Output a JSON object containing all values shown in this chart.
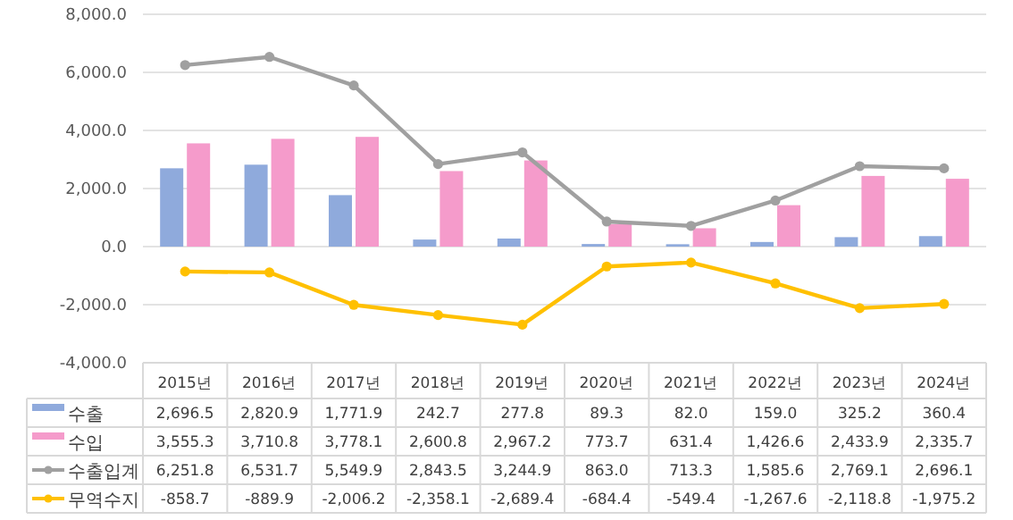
{
  "chart_data": {
    "type": "bar",
    "categories": [
      "2015년",
      "2016년",
      "2017년",
      "2018년",
      "2019년",
      "2020년",
      "2021년",
      "2022년",
      "2023년",
      "2024년"
    ],
    "series": [
      {
        "name": "수출",
        "color": "#8faadc",
        "values": [
          2696.5,
          2820.9,
          1771.9,
          242.7,
          277.8,
          89.3,
          82.0,
          159.0,
          325.2,
          360.4
        ],
        "value_labels": [
          "2,696.5",
          "2,820.9",
          "1,771.9",
          "242.7",
          "277.8",
          "89.3",
          "82.0",
          "159.0",
          "325.2",
          "360.4"
        ]
      },
      {
        "name": "수입",
        "color": "#f59bcb",
        "values": [
          3555.3,
          3710.8,
          3778.1,
          2600.8,
          2967.2,
          773.7,
          631.4,
          1426.6,
          2433.9,
          2335.7
        ],
        "value_labels": [
          "3,555.3",
          "3,710.8",
          "3,778.1",
          "2,600.8",
          "2,967.2",
          "773.7",
          "631.4",
          "1,426.6",
          "2,433.9",
          "2,335.7"
        ]
      },
      {
        "name": "수출입계",
        "type": "line",
        "marker": "circle",
        "color": "#a0a0a0",
        "values": [
          6251.8,
          6531.7,
          5549.9,
          2843.5,
          3244.9,
          863.0,
          713.3,
          1585.6,
          2769.1,
          2696.1
        ],
        "value_labels": [
          "6,251.8",
          "6,531.7",
          "5,549.9",
          "2,843.5",
          "3,244.9",
          "863.0",
          "713.3",
          "1,585.6",
          "2,769.1",
          "2,696.1"
        ]
      },
      {
        "name": "무역수지",
        "type": "line",
        "marker": "circle",
        "color": "#ffc000",
        "values": [
          -858.7,
          -889.9,
          -2006.2,
          -2358.1,
          -2689.4,
          -684.4,
          -549.4,
          -1267.6,
          -2118.8,
          -1975.2
        ],
        "value_labels": [
          "-858.7",
          "-889.9",
          "-2,006.2",
          "-2,358.1",
          "-2,689.4",
          "-684.4",
          "-549.4",
          "-1,267.6",
          "-2,118.8",
          "-1,975.2"
        ]
      }
    ],
    "ylim": [
      -4000,
      8000
    ],
    "yticks": [
      {
        "value": -4000,
        "label": "-4,000.0"
      },
      {
        "value": -2000,
        "label": "-2,000.0"
      },
      {
        "value": 0,
        "label": "0.0"
      },
      {
        "value": 2000,
        "label": "2,000.0"
      },
      {
        "value": 4000,
        "label": "4,000.0"
      },
      {
        "value": 6000,
        "label": "6,000.0"
      },
      {
        "value": 8000,
        "label": "8,000.0"
      }
    ],
    "grid": "y",
    "legend": "bottom"
  }
}
